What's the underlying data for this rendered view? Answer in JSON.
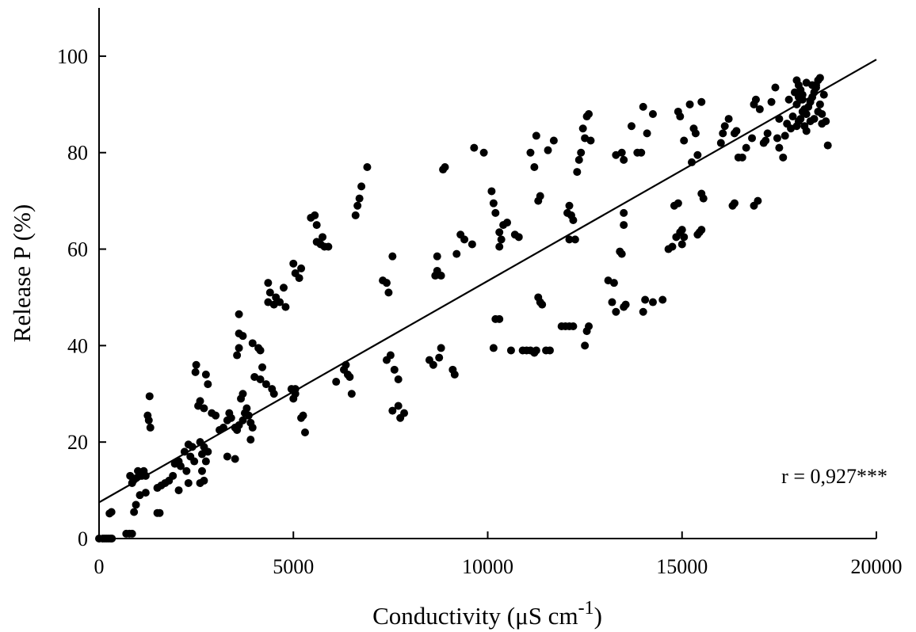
{
  "chart_data": {
    "type": "scatter",
    "title": "",
    "xlabel": "Conductivity (μS cm",
    "xlabel_sup": "-1",
    "xlabel_close": ")",
    "ylabel": "Release P (%)",
    "xlim": [
      0,
      20000
    ],
    "ylim": [
      0,
      110
    ],
    "xticks": [
      0,
      5000,
      10000,
      15000,
      20000
    ],
    "yticks": [
      0,
      20,
      40,
      60,
      80,
      100
    ],
    "grid": false,
    "legend": "none",
    "annotation": "r = 0,927***",
    "marker_color": "#000000",
    "fit_line": {
      "x": [
        0,
        20000
      ],
      "y": [
        7.5,
        99.3
      ]
    },
    "points": [
      [
        0,
        0
      ],
      [
        100,
        0
      ],
      [
        150,
        0
      ],
      [
        200,
        0
      ],
      [
        250,
        0
      ],
      [
        300,
        0
      ],
      [
        330,
        0
      ],
      [
        270,
        5.2
      ],
      [
        320,
        5.5
      ],
      [
        700,
        1
      ],
      [
        780,
        1
      ],
      [
        850,
        1
      ],
      [
        800,
        13
      ],
      [
        850,
        11.5
      ],
      [
        880,
        12
      ],
      [
        950,
        12.5
      ],
      [
        1000,
        14
      ],
      [
        1050,
        13.5
      ],
      [
        1100,
        13
      ],
      [
        1150,
        14
      ],
      [
        1200,
        13
      ],
      [
        900,
        5.5
      ],
      [
        950,
        7
      ],
      [
        1050,
        9
      ],
      [
        1200,
        9.5
      ],
      [
        1300,
        29.5
      ],
      [
        1250,
        25.5
      ],
      [
        1280,
        24.5
      ],
      [
        1320,
        23
      ],
      [
        1500,
        5.3
      ],
      [
        1560,
        5.3
      ],
      [
        1500,
        10.5
      ],
      [
        1600,
        11
      ],
      [
        1700,
        11.5
      ],
      [
        1800,
        12
      ],
      [
        1900,
        13
      ],
      [
        1950,
        15.5
      ],
      [
        2050,
        16
      ],
      [
        2100,
        15
      ],
      [
        2050,
        10
      ],
      [
        2200,
        18
      ],
      [
        2300,
        19.5
      ],
      [
        2350,
        17
      ],
      [
        2400,
        19
      ],
      [
        2450,
        16
      ],
      [
        2300,
        11.5
      ],
      [
        2250,
        14
      ],
      [
        2500,
        36
      ],
      [
        2480,
        34.5
      ],
      [
        2550,
        27.5
      ],
      [
        2600,
        28.5
      ],
      [
        2700,
        27
      ],
      [
        2750,
        34
      ],
      [
        2800,
        32
      ],
      [
        2600,
        20
      ],
      [
        2700,
        19
      ],
      [
        2650,
        17.5
      ],
      [
        2750,
        16
      ],
      [
        2800,
        18
      ],
      [
        2600,
        11.5
      ],
      [
        2700,
        12
      ],
      [
        2650,
        14
      ],
      [
        2900,
        26
      ],
      [
        3000,
        25.5
      ],
      [
        3100,
        22.5
      ],
      [
        3200,
        23
      ],
      [
        3300,
        24.5
      ],
      [
        3350,
        26
      ],
      [
        3400,
        25
      ],
      [
        3300,
        17
      ],
      [
        3500,
        16.5
      ],
      [
        3500,
        23
      ],
      [
        3550,
        22.5
      ],
      [
        3600,
        39.5
      ],
      [
        3550,
        38
      ],
      [
        3600,
        42.5
      ],
      [
        3700,
        42
      ],
      [
        3600,
        46.5
      ],
      [
        3650,
        29
      ],
      [
        3700,
        30
      ],
      [
        3750,
        26
      ],
      [
        3800,
        27
      ],
      [
        3850,
        25.5
      ],
      [
        3900,
        24
      ],
      [
        3950,
        23
      ],
      [
        3600,
        23.5
      ],
      [
        3700,
        24.5
      ],
      [
        3900,
        20.5
      ],
      [
        3950,
        40.5
      ],
      [
        4100,
        39.5
      ],
      [
        4150,
        39
      ],
      [
        4000,
        33.5
      ],
      [
        4150,
        33
      ],
      [
        4300,
        32
      ],
      [
        4450,
        31
      ],
      [
        4200,
        35.5
      ],
      [
        4500,
        30
      ],
      [
        4350,
        53
      ],
      [
        4400,
        51
      ],
      [
        4550,
        50
      ],
      [
        4650,
        49
      ],
      [
        4750,
        52
      ],
      [
        4800,
        48
      ],
      [
        4350,
        49
      ],
      [
        4500,
        48.5
      ],
      [
        4950,
        31
      ],
      [
        5050,
        31
      ],
      [
        5000,
        29
      ],
      [
        5050,
        30
      ],
      [
        5000,
        57
      ],
      [
        5050,
        55
      ],
      [
        5150,
        54
      ],
      [
        5200,
        56
      ],
      [
        5200,
        25
      ],
      [
        5250,
        25.5
      ],
      [
        5300,
        22
      ],
      [
        5450,
        66.5
      ],
      [
        5550,
        67
      ],
      [
        5600,
        65
      ],
      [
        5600,
        61.5
      ],
      [
        5700,
        61
      ],
      [
        5750,
        62.5
      ],
      [
        5800,
        60.5
      ],
      [
        5900,
        60.5
      ],
      [
        6100,
        32.5
      ],
      [
        6300,
        35
      ],
      [
        6350,
        36
      ],
      [
        6400,
        34
      ],
      [
        6450,
        33.5
      ],
      [
        6500,
        30
      ],
      [
        6600,
        67
      ],
      [
        6650,
        69
      ],
      [
        6700,
        70.5
      ],
      [
        6750,
        73
      ],
      [
        6900,
        77
      ],
      [
        7300,
        53.5
      ],
      [
        7400,
        53
      ],
      [
        7450,
        51
      ],
      [
        7550,
        58.5
      ],
      [
        7400,
        37
      ],
      [
        7500,
        38
      ],
      [
        7600,
        35
      ],
      [
        7700,
        33
      ],
      [
        7550,
        26.5
      ],
      [
        7700,
        27.5
      ],
      [
        7750,
        25
      ],
      [
        7850,
        26
      ],
      [
        8500,
        37
      ],
      [
        8600,
        36
      ],
      [
        8650,
        54.5
      ],
      [
        8700,
        55.5
      ],
      [
        8800,
        54.5
      ],
      [
        8850,
        76.5
      ],
      [
        8900,
        77
      ],
      [
        8700,
        58.5
      ],
      [
        8800,
        39.5
      ],
      [
        8750,
        37.5
      ],
      [
        9100,
        35
      ],
      [
        9150,
        34
      ],
      [
        9200,
        59
      ],
      [
        9300,
        63
      ],
      [
        9400,
        62
      ],
      [
        9600,
        61
      ],
      [
        9650,
        81
      ],
      [
        9900,
        80
      ],
      [
        10100,
        72
      ],
      [
        10150,
        69.5
      ],
      [
        10200,
        67.5
      ],
      [
        10300,
        63.5
      ],
      [
        10350,
        62
      ],
      [
        10300,
        60.5
      ],
      [
        10400,
        65
      ],
      [
        10500,
        65.5
      ],
      [
        10700,
        63
      ],
      [
        10800,
        62.5
      ],
      [
        10200,
        45.5
      ],
      [
        10300,
        45.5
      ],
      [
        10150,
        39.5
      ],
      [
        10600,
        39
      ],
      [
        10900,
        39
      ],
      [
        11000,
        39
      ],
      [
        11100,
        39
      ],
      [
        11200,
        38.5
      ],
      [
        11250,
        39
      ],
      [
        11300,
        50
      ],
      [
        11350,
        49
      ],
      [
        11400,
        48.5
      ],
      [
        11500,
        39
      ],
      [
        11600,
        39
      ],
      [
        11100,
        80
      ],
      [
        11200,
        77
      ],
      [
        11250,
        83.5
      ],
      [
        11300,
        70
      ],
      [
        11350,
        71
      ],
      [
        11550,
        80.5
      ],
      [
        11700,
        82.5
      ],
      [
        11900,
        44
      ],
      [
        12000,
        44
      ],
      [
        12100,
        44
      ],
      [
        12200,
        44
      ],
      [
        12050,
        67.5
      ],
      [
        12100,
        69
      ],
      [
        12150,
        67
      ],
      [
        12200,
        66
      ],
      [
        12100,
        62
      ],
      [
        12250,
        62
      ],
      [
        12300,
        76
      ],
      [
        12350,
        78.5
      ],
      [
        12400,
        80
      ],
      [
        12450,
        85
      ],
      [
        12500,
        83
      ],
      [
        12550,
        87.5
      ],
      [
        12600,
        88
      ],
      [
        12650,
        82.5
      ],
      [
        12500,
        40
      ],
      [
        12550,
        43
      ],
      [
        12600,
        44
      ],
      [
        13100,
        53.5
      ],
      [
        13250,
        53
      ],
      [
        13200,
        49
      ],
      [
        13300,
        47
      ],
      [
        13400,
        59.5
      ],
      [
        13450,
        59
      ],
      [
        13500,
        65
      ],
      [
        13500,
        67.5
      ],
      [
        13500,
        48
      ],
      [
        13550,
        48.5
      ],
      [
        13300,
        79.5
      ],
      [
        13450,
        80
      ],
      [
        13500,
        78.5
      ],
      [
        13700,
        85.5
      ],
      [
        13850,
        80
      ],
      [
        13950,
        80
      ],
      [
        14000,
        89.5
      ],
      [
        14100,
        84
      ],
      [
        14250,
        88
      ],
      [
        14000,
        47
      ],
      [
        14050,
        49.5
      ],
      [
        14250,
        49
      ],
      [
        14500,
        49.5
      ],
      [
        14650,
        60
      ],
      [
        14750,
        60.5
      ],
      [
        14800,
        69
      ],
      [
        14850,
        62.5
      ],
      [
        14950,
        63.5
      ],
      [
        15000,
        64
      ],
      [
        14900,
        69.5
      ],
      [
        15000,
        61
      ],
      [
        15050,
        62.5
      ],
      [
        14900,
        88.5
      ],
      [
        14950,
        87.5
      ],
      [
        15050,
        82.5
      ],
      [
        15200,
        90
      ],
      [
        15300,
        85
      ],
      [
        15350,
        84
      ],
      [
        15250,
        78
      ],
      [
        15400,
        79.5
      ],
      [
        15400,
        63
      ],
      [
        15450,
        63.5
      ],
      [
        15500,
        64
      ],
      [
        15500,
        71.5
      ],
      [
        15550,
        70.5
      ],
      [
        15500,
        90.5
      ],
      [
        16000,
        82
      ],
      [
        16050,
        84
      ],
      [
        16100,
        85.5
      ],
      [
        16200,
        87
      ],
      [
        16300,
        69
      ],
      [
        16350,
        69.5
      ],
      [
        16350,
        84
      ],
      [
        16400,
        84.5
      ],
      [
        16450,
        79
      ],
      [
        16550,
        79
      ],
      [
        16650,
        81
      ],
      [
        16800,
        83
      ],
      [
        16850,
        69
      ],
      [
        16950,
        70
      ],
      [
        16850,
        90
      ],
      [
        16900,
        91
      ],
      [
        17000,
        89
      ],
      [
        17100,
        82
      ],
      [
        17150,
        82.5
      ],
      [
        17200,
        84
      ],
      [
        17300,
        90.5
      ],
      [
        17400,
        93.5
      ],
      [
        17450,
        83
      ],
      [
        17500,
        81
      ],
      [
        17500,
        87
      ],
      [
        17600,
        79
      ],
      [
        17650,
        83.5
      ],
      [
        17700,
        86
      ],
      [
        17750,
        91
      ],
      [
        17800,
        85
      ],
      [
        17850,
        87.5
      ],
      [
        17900,
        92.5
      ],
      [
        17950,
        95
      ],
      [
        18000,
        94
      ],
      [
        18050,
        93
      ],
      [
        18100,
        91
      ],
      [
        18150,
        89
      ],
      [
        18200,
        88
      ],
      [
        17950,
        85.5
      ],
      [
        18000,
        86.5
      ],
      [
        18050,
        87
      ],
      [
        18100,
        88.5
      ],
      [
        18150,
        85.5
      ],
      [
        18200,
        84.5
      ],
      [
        18250,
        89.5
      ],
      [
        18300,
        90.5
      ],
      [
        18350,
        91.5
      ],
      [
        18400,
        92.5
      ],
      [
        18450,
        94
      ],
      [
        18500,
        95
      ],
      [
        18550,
        95.5
      ],
      [
        18300,
        86.5
      ],
      [
        18400,
        87
      ],
      [
        18500,
        88.5
      ],
      [
        18600,
        86
      ],
      [
        18650,
        92
      ],
      [
        18700,
        86.5
      ],
      [
        18750,
        81.5
      ],
      [
        17950,
        90
      ],
      [
        18000,
        91.5
      ],
      [
        18100,
        92
      ],
      [
        18200,
        94.5
      ],
      [
        18350,
        94
      ],
      [
        18450,
        93.5
      ],
      [
        18550,
        90
      ],
      [
        18600,
        88
      ]
    ]
  }
}
